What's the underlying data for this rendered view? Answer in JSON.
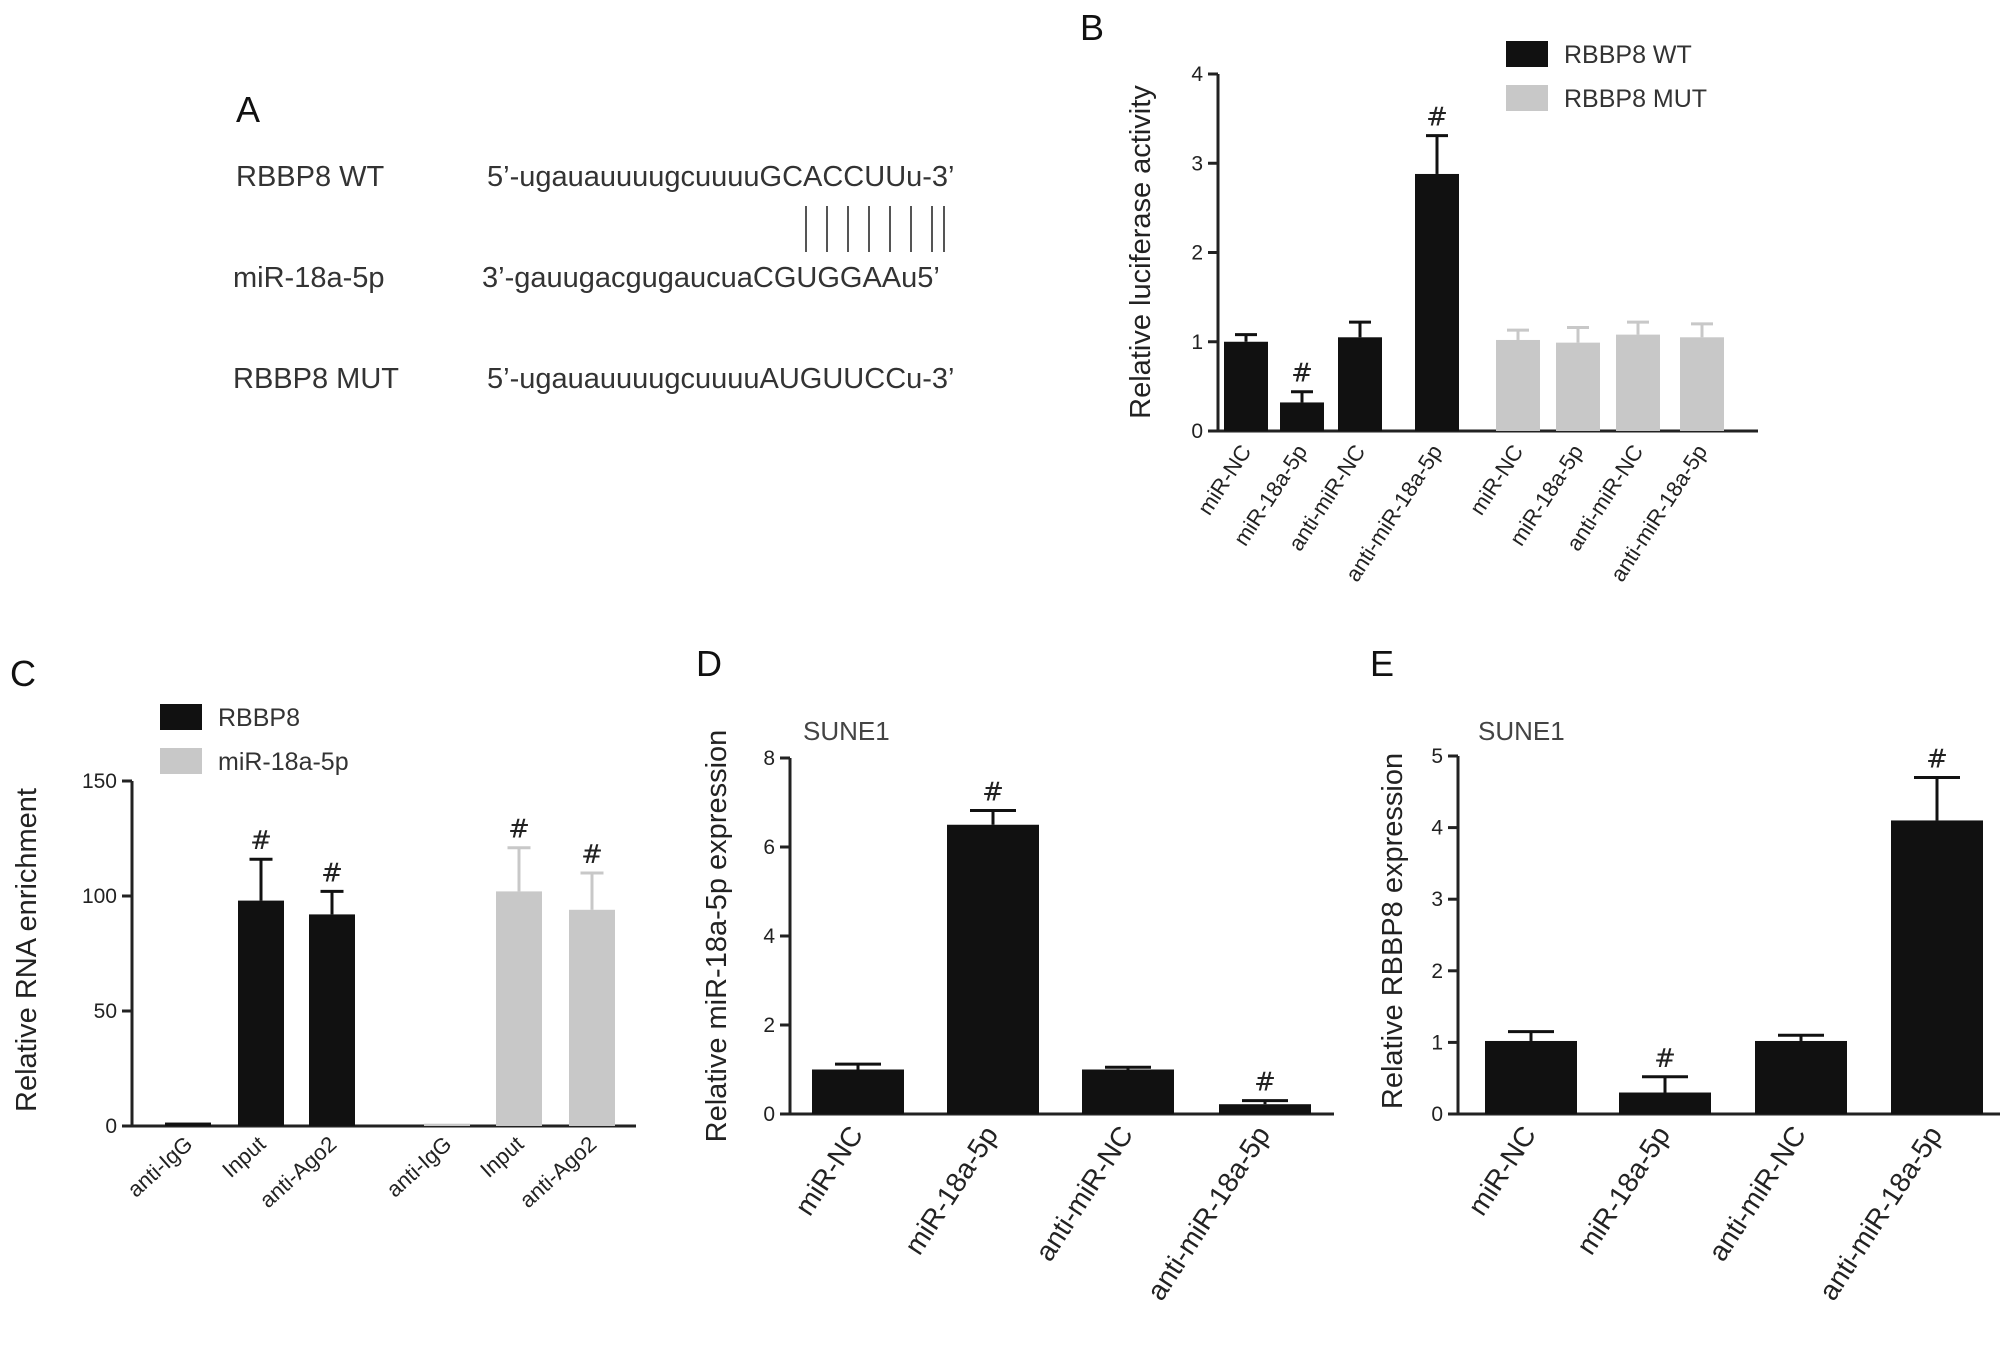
{
  "colors": {
    "series_black": "#111111",
    "series_gray": "#c8c8c8",
    "axis": "#222222"
  },
  "panel_letters": [
    "A",
    "B",
    "C",
    "D",
    "E"
  ],
  "sequences": {
    "rows": [
      {
        "label": "RBBP8 WT",
        "seq": "5’-ugauauuuugcuuuuGCACCUUu-3’"
      },
      {
        "label": "miR-18a-5p",
        "seq": "3’-gauugacgugaucuaCGUGGAAu5’"
      },
      {
        "label": "RBBP8 MUT",
        "seq": "5’-ugauauuuugcuuuuAUGUUCCu-3’"
      }
    ]
  },
  "chart_data": [
    {
      "panel": "B",
      "type": "bar",
      "ylabel": "Relative luciferase activity",
      "ylim": [
        0,
        4
      ],
      "yticks": [
        "0",
        "1",
        "2",
        "3",
        "4"
      ],
      "categories": [
        "miR-NC",
        "miR-18a-5p",
        "anti-miR-NC",
        "anti-miR-18a-5p"
      ],
      "legend_position": "top-right",
      "series": [
        {
          "name": "RBBP8 WT",
          "color": "#111111",
          "values": [
            1.0,
            0.32,
            1.05,
            2.88
          ],
          "errors": [
            0.08,
            0.12,
            0.17,
            0.43
          ],
          "sig": [
            "",
            "#",
            "",
            "#"
          ]
        },
        {
          "name": "RBBP8 MUT",
          "color": "#c8c8c8",
          "values": [
            1.02,
            0.99,
            1.08,
            1.05
          ],
          "errors": [
            0.11,
            0.17,
            0.14,
            0.15
          ],
          "sig": [
            "",
            "",
            "",
            ""
          ]
        }
      ]
    },
    {
      "panel": "C",
      "type": "bar",
      "ylabel": "Relative RNA enrichment",
      "ylim": [
        0,
        150
      ],
      "yticks": [
        "0",
        "50",
        "100",
        "150"
      ],
      "categories": [
        "anti-IgG",
        "Input",
        "anti-Ago2"
      ],
      "legend_position": "top-left",
      "series": [
        {
          "name": "RBBP8",
          "color": "#111111",
          "values": [
            1.5,
            98,
            92
          ],
          "errors": [
            0,
            18,
            10
          ],
          "sig": [
            "",
            "#",
            "#"
          ]
        },
        {
          "name": "miR-18a-5p",
          "color": "#c8c8c8",
          "values": [
            1.0,
            102,
            94
          ],
          "errors": [
            0,
            19,
            16
          ],
          "sig": [
            "",
            "#",
            "#"
          ]
        }
      ]
    },
    {
      "panel": "D",
      "type": "bar",
      "annotation": "SUNE1",
      "ylabel": "Relative miR-18a-5p expression",
      "ylim": [
        0,
        8
      ],
      "yticks": [
        "0",
        "2",
        "4",
        "6",
        "8"
      ],
      "categories": [
        "miR-NC",
        "miR-18a-5p",
        "anti-miR-NC",
        "anti-miR-18a-5p"
      ],
      "series": [
        {
          "color": "#111111",
          "values": [
            1.0,
            6.5,
            1.0,
            0.22
          ],
          "errors": [
            0.12,
            0.32,
            0.05,
            0.08
          ],
          "sig": [
            "",
            "#",
            "",
            "#"
          ]
        }
      ]
    },
    {
      "panel": "E",
      "type": "bar",
      "annotation": "SUNE1",
      "ylabel": "Relative RBBP8 expression",
      "ylim": [
        0,
        5
      ],
      "yticks": [
        "0",
        "1",
        "2",
        "3",
        "4",
        "5"
      ],
      "categories": [
        "miR-NC",
        "miR-18a-5p",
        "anti-miR-NC",
        "anti-miR-18a-5p"
      ],
      "series": [
        {
          "color": "#111111",
          "values": [
            1.02,
            0.3,
            1.02,
            4.1
          ],
          "errors": [
            0.13,
            0.22,
            0.08,
            0.6
          ],
          "sig": [
            "",
            "#",
            "",
            "#"
          ]
        }
      ]
    }
  ]
}
